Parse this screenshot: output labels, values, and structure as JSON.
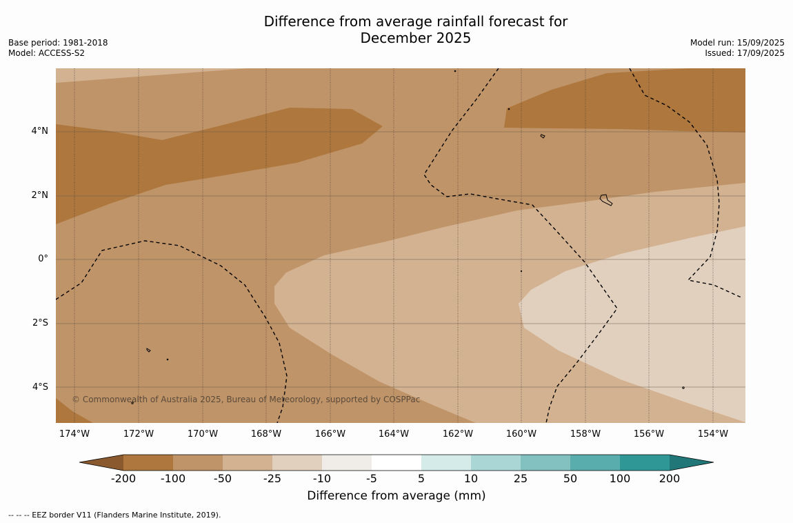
{
  "title": {
    "line1": "Difference from average rainfall forecast for",
    "line2": "December 2025"
  },
  "meta_left": {
    "base_period": "Base period: 1981-2018",
    "model": "Model: ACCESS-S2"
  },
  "meta_right": {
    "model_run": "Model run: 15/09/2025",
    "issued": "Issued: 17/09/2025"
  },
  "map": {
    "lat_labels": [
      "4°N",
      "2°N",
      "0°",
      "2°S",
      "4°S"
    ],
    "lon_labels": [
      "174°W",
      "172°W",
      "170°W",
      "168°W",
      "166°W",
      "164°W",
      "162°W",
      "160°W",
      "158°W",
      "156°W",
      "154°W"
    ],
    "copyright": "© Commonwealth of Australia 2025, Bureau of Meteorology, supported by COSPPac",
    "colors": {
      "lt_minus200": "#8a5a2e",
      "minus200_minus100": "#ad773e",
      "minus100_minus50": "#c09469",
      "minus50_minus25": "#d3b292",
      "minus25_minus10": "#e2d0bf",
      "minus10_minus5": "#f0ede8",
      "minus5_5": "#ffffff",
      "5_10": "#d5ebe9",
      "10_25": "#abd6d6",
      "25_50": "#82c1c0",
      "50_100": "#5aadad",
      "100_200": "#2f9897",
      "gt200": "#217777"
    }
  },
  "colorbar": {
    "ticks": [
      "-200",
      "-100",
      "-50",
      "-25",
      "-10",
      "-5",
      "5",
      "10",
      "25",
      "50",
      "100",
      "200"
    ],
    "title": "Difference from average (mm)"
  },
  "footer": "--  --  -- EEZ border V11 (Flanders Marine Institute, 2019)."
}
